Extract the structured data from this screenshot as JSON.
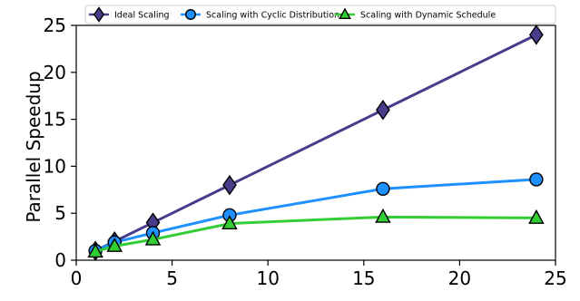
{
  "chart_data": {
    "type": "line",
    "title": "",
    "xlabel": "",
    "ylabel": "Parallel Speedup",
    "xlim": [
      0,
      25
    ],
    "ylim": [
      0,
      25
    ],
    "xticks": [
      0,
      5,
      10,
      15,
      20,
      25
    ],
    "yticks": [
      0,
      5,
      10,
      15,
      20,
      25
    ],
    "grid": false,
    "legend_position": "top",
    "x": [
      1,
      2,
      4,
      8,
      16,
      24
    ],
    "series": [
      {
        "name": "Ideal Scaling",
        "values": [
          1,
          2,
          4,
          8,
          16,
          24
        ],
        "color": "#483d8b",
        "marker": "diamond"
      },
      {
        "name": "Scaling with Cyclic Distribution",
        "values": [
          1.0,
          1.9,
          2.9,
          4.8,
          7.6,
          8.6
        ],
        "color": "#1e90ff",
        "marker": "circle"
      },
      {
        "name": "Scaling with Dynamic Schedule",
        "values": [
          0.9,
          1.5,
          2.2,
          3.9,
          4.6,
          4.5
        ],
        "color": "#32cd32",
        "marker": "triangle"
      }
    ]
  }
}
